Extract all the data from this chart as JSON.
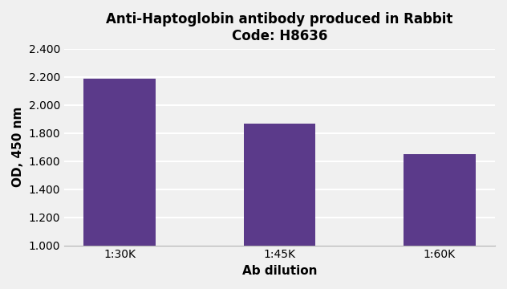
{
  "title_line1": "Anti-Haptoglobin antibody produced in Rabbit",
  "title_line2": "Code: H8636",
  "categories": [
    "1:30K",
    "1:45K",
    "1:60K"
  ],
  "values": [
    2.185,
    1.868,
    1.648
  ],
  "bar_color": "#5b3a8a",
  "xlabel": "Ab dilution",
  "ylabel": "OD, 450 nm",
  "ylim": [
    1.0,
    2.4
  ],
  "yticks": [
    1.0,
    1.2,
    1.4,
    1.6,
    1.8,
    2.0,
    2.2,
    2.4
  ],
  "ytick_labels": [
    "1.000",
    "1.200",
    "1.400",
    "1.600",
    "1.800",
    "2.000",
    "2.200",
    "2.400"
  ],
  "background_color": "#f0f0f0",
  "grid_color": "#ffffff",
  "title_fontsize": 12,
  "label_fontsize": 11,
  "tick_fontsize": 10,
  "bar_width": 0.45
}
